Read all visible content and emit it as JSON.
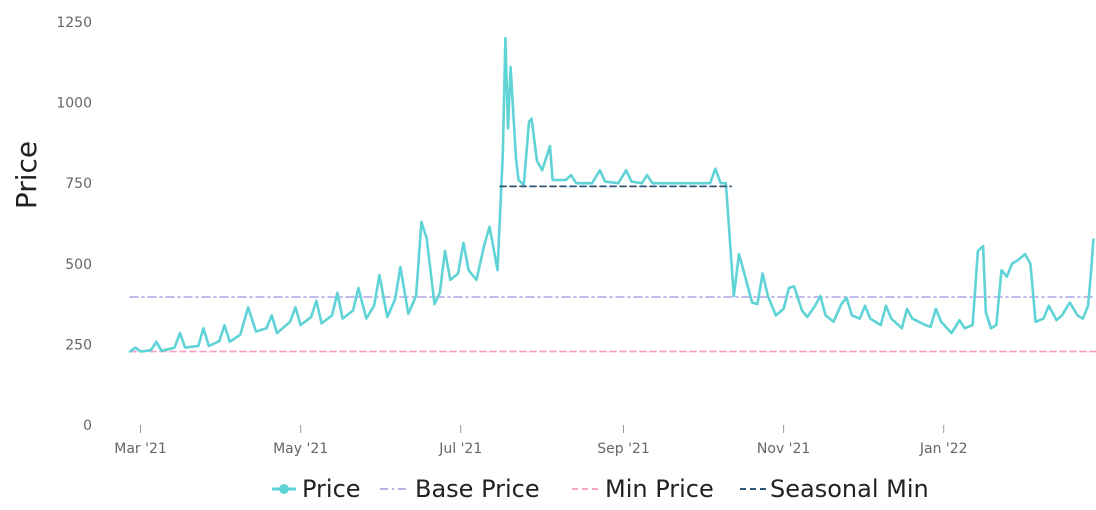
{
  "chart_data": {
    "type": "line",
    "title": "",
    "xlabel": "",
    "ylabel": "Price",
    "ylim": [
      0,
      1250
    ],
    "y_ticks": [
      "0",
      "250",
      "500",
      "750",
      "1000",
      "1250"
    ],
    "x_ticks": [
      {
        "label": "Mar '21",
        "date": "2021-03-01"
      },
      {
        "label": "May '21",
        "date": "2021-05-01"
      },
      {
        "label": "Jul '21",
        "date": "2021-07-01"
      },
      {
        "label": "Sep '21",
        "date": "2021-09-01"
      },
      {
        "label": "Nov '21",
        "date": "2021-11-01"
      },
      {
        "label": "Jan '22",
        "date": "2022-01-01"
      }
    ],
    "xlim": [
      "2021-02-25",
      "2022-02-28"
    ],
    "grid": false,
    "legend_position": "bottom",
    "colors": {
      "price": "#5fd3d6",
      "base_price": "#b9b3ea",
      "min_price": "#f4a3c6",
      "seasonal_min": "#2f5679"
    },
    "series": [
      {
        "name": "Price",
        "style": "solid-with-markers",
        "points": [
          [
            "2021-02-25",
            228
          ],
          [
            "2021-02-27",
            240
          ],
          [
            "2021-03-01",
            228
          ],
          [
            "2021-03-05",
            232
          ],
          [
            "2021-03-07",
            258
          ],
          [
            "2021-03-09",
            230
          ],
          [
            "2021-03-14",
            240
          ],
          [
            "2021-03-16",
            285
          ],
          [
            "2021-03-18",
            240
          ],
          [
            "2021-03-23",
            245
          ],
          [
            "2021-03-25",
            300
          ],
          [
            "2021-03-27",
            245
          ],
          [
            "2021-03-31",
            260
          ],
          [
            "2021-04-02",
            310
          ],
          [
            "2021-04-04",
            258
          ],
          [
            "2021-04-08",
            280
          ],
          [
            "2021-04-11",
            365
          ],
          [
            "2021-04-14",
            290
          ],
          [
            "2021-04-18",
            300
          ],
          [
            "2021-04-20",
            340
          ],
          [
            "2021-04-22",
            285
          ],
          [
            "2021-04-27",
            320
          ],
          [
            "2021-04-29",
            365
          ],
          [
            "2021-05-01",
            310
          ],
          [
            "2021-05-05",
            335
          ],
          [
            "2021-05-07",
            385
          ],
          [
            "2021-05-09",
            315
          ],
          [
            "2021-05-13",
            340
          ],
          [
            "2021-05-15",
            410
          ],
          [
            "2021-05-17",
            330
          ],
          [
            "2021-05-21",
            355
          ],
          [
            "2021-05-23",
            425
          ],
          [
            "2021-05-26",
            330
          ],
          [
            "2021-05-29",
            370
          ],
          [
            "2021-05-31",
            465
          ],
          [
            "2021-06-03",
            335
          ],
          [
            "2021-06-06",
            390
          ],
          [
            "2021-06-08",
            490
          ],
          [
            "2021-06-11",
            345
          ],
          [
            "2021-06-14",
            400
          ],
          [
            "2021-06-16",
            630
          ],
          [
            "2021-06-18",
            580
          ],
          [
            "2021-06-21",
            375
          ],
          [
            "2021-06-23",
            410
          ],
          [
            "2021-06-25",
            540
          ],
          [
            "2021-06-27",
            450
          ],
          [
            "2021-06-30",
            470
          ],
          [
            "2021-07-02",
            565
          ],
          [
            "2021-07-04",
            480
          ],
          [
            "2021-07-07",
            450
          ],
          [
            "2021-07-10",
            560
          ],
          [
            "2021-07-12",
            615
          ],
          [
            "2021-07-15",
            480
          ],
          [
            "2021-07-17",
            840
          ],
          [
            "2021-07-18",
            1200
          ],
          [
            "2021-07-19",
            920
          ],
          [
            "2021-07-20",
            1110
          ],
          [
            "2021-07-22",
            830
          ],
          [
            "2021-07-23",
            760
          ],
          [
            "2021-07-25",
            745
          ],
          [
            "2021-07-27",
            940
          ],
          [
            "2021-07-28",
            950
          ],
          [
            "2021-07-30",
            820
          ],
          [
            "2021-08-01",
            790
          ],
          [
            "2021-08-04",
            865
          ],
          [
            "2021-08-05",
            760
          ],
          [
            "2021-08-10",
            760
          ],
          [
            "2021-08-12",
            775
          ],
          [
            "2021-08-14",
            750
          ],
          [
            "2021-08-20",
            750
          ],
          [
            "2021-08-23",
            790
          ],
          [
            "2021-08-25",
            755
          ],
          [
            "2021-08-30",
            750
          ],
          [
            "2021-09-02",
            790
          ],
          [
            "2021-09-04",
            755
          ],
          [
            "2021-09-08",
            750
          ],
          [
            "2021-09-10",
            775
          ],
          [
            "2021-09-12",
            750
          ],
          [
            "2021-10-04",
            750
          ],
          [
            "2021-10-06",
            795
          ],
          [
            "2021-10-08",
            750
          ],
          [
            "2021-10-10",
            750
          ],
          [
            "2021-10-13",
            400
          ],
          [
            "2021-10-15",
            530
          ],
          [
            "2021-10-17",
            470
          ],
          [
            "2021-10-20",
            380
          ],
          [
            "2021-10-22",
            375
          ],
          [
            "2021-10-24",
            470
          ],
          [
            "2021-10-26",
            400
          ],
          [
            "2021-10-29",
            340
          ],
          [
            "2021-11-01",
            360
          ],
          [
            "2021-11-03",
            425
          ],
          [
            "2021-11-05",
            430
          ],
          [
            "2021-11-08",
            355
          ],
          [
            "2021-11-10",
            335
          ],
          [
            "2021-11-13",
            370
          ],
          [
            "2021-11-15",
            400
          ],
          [
            "2021-11-17",
            340
          ],
          [
            "2021-11-20",
            320
          ],
          [
            "2021-11-23",
            375
          ],
          [
            "2021-11-25",
            395
          ],
          [
            "2021-11-27",
            340
          ],
          [
            "2021-11-30",
            330
          ],
          [
            "2021-12-02",
            370
          ],
          [
            "2021-12-04",
            330
          ],
          [
            "2021-12-08",
            310
          ],
          [
            "2021-12-10",
            370
          ],
          [
            "2021-12-12",
            330
          ],
          [
            "2021-12-16",
            300
          ],
          [
            "2021-12-18",
            360
          ],
          [
            "2021-12-20",
            330
          ],
          [
            "2021-12-25",
            310
          ],
          [
            "2021-12-27",
            305
          ],
          [
            "2021-12-29",
            360
          ],
          [
            "2021-12-31",
            320
          ],
          [
            "2022-01-04",
            285
          ],
          [
            "2022-01-07",
            325
          ],
          [
            "2022-01-09",
            300
          ],
          [
            "2022-01-12",
            310
          ],
          [
            "2022-01-14",
            540
          ],
          [
            "2022-01-16",
            555
          ],
          [
            "2022-01-17",
            350
          ],
          [
            "2022-01-19",
            300
          ],
          [
            "2022-01-21",
            310
          ],
          [
            "2022-01-23",
            480
          ],
          [
            "2022-01-25",
            460
          ],
          [
            "2022-01-27",
            500
          ],
          [
            "2022-01-29",
            510
          ],
          [
            "2022-02-01",
            530
          ],
          [
            "2022-02-03",
            500
          ],
          [
            "2022-02-05",
            320
          ],
          [
            "2022-02-08",
            330
          ],
          [
            "2022-02-10",
            370
          ],
          [
            "2022-02-13",
            325
          ],
          [
            "2022-02-15",
            340
          ],
          [
            "2022-02-18",
            380
          ],
          [
            "2022-02-21",
            340
          ],
          [
            "2022-02-23",
            330
          ],
          [
            "2022-02-25",
            370
          ],
          [
            "2022-02-26",
            465
          ],
          [
            "2022-02-27",
            575
          ]
        ]
      },
      {
        "name": "Base Price",
        "style": "dash-dot",
        "points": [
          [
            "2021-02-25",
            397
          ],
          [
            "2022-02-28",
            397
          ]
        ]
      },
      {
        "name": "Min Price",
        "style": "dashed",
        "points": [
          [
            "2021-02-25",
            228
          ],
          [
            "2022-02-28",
            228
          ]
        ]
      },
      {
        "name": "Seasonal Min",
        "style": "dashed",
        "points": [
          [
            "2021-07-16",
            740
          ],
          [
            "2021-10-12",
            740
          ]
        ]
      }
    ]
  }
}
